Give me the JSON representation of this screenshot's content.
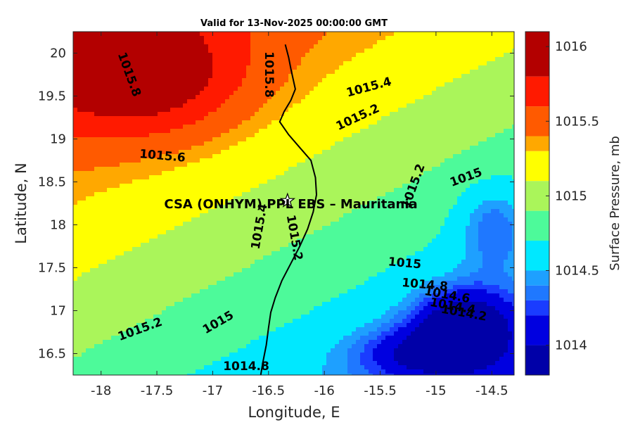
{
  "chart_data": {
    "type": "heatmap",
    "title": "Valid for 13-Nov-2025 00:00:00 GMT",
    "xlabel": "Longitude, E",
    "ylabel": "Latitude, N",
    "xlim": [
      -18.25,
      -14.3
    ],
    "ylim": [
      16.25,
      20.25
    ],
    "xticks": [
      -18,
      -17.5,
      -17,
      -16.5,
      -16,
      -15.5,
      -15,
      -14.5
    ],
    "xtick_labels": [
      "-18",
      "-17.5",
      "-17",
      "-16.5",
      "-16",
      "-15.5",
      "-15",
      "-14.5"
    ],
    "yticks": [
      16.5,
      17,
      17.5,
      18,
      18.5,
      19,
      19.5,
      20
    ],
    "ytick_labels": [
      "16.5",
      "17",
      "17.5",
      "18",
      "18.5",
      "19",
      "19.5",
      "20"
    ],
    "colorbar": {
      "label": "Surface Pressure, mb",
      "levels": [
        1013.8,
        1013.9,
        1014.0,
        1014.1,
        1014.2,
        1014.3,
        1014.4,
        1014.5,
        1014.6,
        1014.7,
        1014.8,
        1014.9,
        1015.0,
        1015.1,
        1015.2,
        1015.3,
        1015.4,
        1015.5,
        1015.6,
        1015.7,
        1015.8,
        1015.9,
        1016.0,
        1016.1
      ],
      "ticks": [
        1014,
        1014.5,
        1015,
        1015.5,
        1016
      ],
      "tick_labels": [
        "1014",
        "1014.5",
        "1015",
        "1015.5",
        "1016"
      ],
      "colors": [
        "#0000a8",
        "#0000e0",
        "#1a3cff",
        "#1f78ff",
        "#1ea0ff",
        "#00e8ff",
        "#4dfa9a",
        "#aaf55a",
        "#ffff00",
        "#ffa800",
        "#ff5a00",
        "#ff1a00",
        "#b30000"
      ],
      "color_bounds": [
        1013.8,
        1014.0,
        1014.2,
        1014.3,
        1014.4,
        1014.5,
        1014.7,
        1014.9,
        1015.1,
        1015.3,
        1015.4,
        1015.6,
        1015.8,
        1016.1
      ]
    },
    "pressure_field": {
      "base": 1015.0,
      "gradient_lon": 0.15,
      "gradient_lat": 0.22,
      "features": [
        {
          "lon": -17.6,
          "lat": 19.7,
          "amp": 0.55,
          "sx": 0.9,
          "sy": 0.7
        },
        {
          "lon": -14.75,
          "lat": 16.8,
          "amp": -0.85,
          "sx": 0.45,
          "sy": 0.45
        },
        {
          "lon": -14.5,
          "lat": 18.0,
          "amp": -0.35,
          "sx": 0.3,
          "sy": 0.5
        },
        {
          "lon": -15.2,
          "lat": 16.5,
          "amp": -0.45,
          "sx": 0.55,
          "sy": 0.3
        }
      ]
    },
    "contour_labels": [
      {
        "text": "1015.8",
        "lon": -17.75,
        "lat": 19.75,
        "rot": 70
      },
      {
        "text": "1015.8",
        "lon": -16.5,
        "lat": 19.75,
        "rot": 90
      },
      {
        "text": "1015.6",
        "lon": -17.45,
        "lat": 18.8,
        "rot": 5
      },
      {
        "text": "1015.4",
        "lon": -15.6,
        "lat": 19.6,
        "rot": -15
      },
      {
        "text": "1015.2",
        "lon": -15.7,
        "lat": 19.25,
        "rot": -25
      },
      {
        "text": "1015.4",
        "lon": -16.58,
        "lat": 17.98,
        "rot": -80
      },
      {
        "text": "1015.2",
        "lon": -16.27,
        "lat": 17.85,
        "rot": 80
      },
      {
        "text": "1015.2",
        "lon": -15.2,
        "lat": 18.45,
        "rot": -70
      },
      {
        "text": "1015",
        "lon": -14.73,
        "lat": 18.55,
        "rot": -20
      },
      {
        "text": "1015",
        "lon": -15.28,
        "lat": 17.55,
        "rot": 5
      },
      {
        "text": "1014.8",
        "lon": -15.1,
        "lat": 17.3,
        "rot": 5
      },
      {
        "text": "1014.6",
        "lon": -14.9,
        "lat": 17.18,
        "rot": 10
      },
      {
        "text": "1014.4",
        "lon": -14.85,
        "lat": 17.05,
        "rot": 10
      },
      {
        "text": "1014.2",
        "lon": -14.75,
        "lat": 16.97,
        "rot": 10
      },
      {
        "text": "1015.2",
        "lon": -17.65,
        "lat": 16.78,
        "rot": -20
      },
      {
        "text": "1015",
        "lon": -16.95,
        "lat": 16.86,
        "rot": -30
      },
      {
        "text": "1014.8",
        "lon": -16.7,
        "lat": 16.35,
        "rot": 0
      }
    ],
    "coastline": [
      [
        -16.35,
        20.1
      ],
      [
        -16.32,
        19.95
      ],
      [
        -16.3,
        19.82
      ],
      [
        -16.28,
        19.7
      ],
      [
        -16.26,
        19.58
      ],
      [
        -16.3,
        19.45
      ],
      [
        -16.36,
        19.32
      ],
      [
        -16.4,
        19.2
      ],
      [
        -16.32,
        19.05
      ],
      [
        -16.22,
        18.9
      ],
      [
        -16.12,
        18.75
      ],
      [
        -16.08,
        18.55
      ],
      [
        -16.07,
        18.35
      ],
      [
        -16.1,
        18.15
      ],
      [
        -16.15,
        17.95
      ],
      [
        -16.22,
        17.75
      ],
      [
        -16.3,
        17.55
      ],
      [
        -16.38,
        17.35
      ],
      [
        -16.44,
        17.15
      ],
      [
        -16.48,
        16.98
      ],
      [
        -16.5,
        16.8
      ],
      [
        -16.52,
        16.6
      ],
      [
        -16.55,
        16.4
      ],
      [
        -16.57,
        16.25
      ]
    ],
    "annotation": {
      "text": "CSA (ONHYM) PPL EBS  – Mauritania",
      "lon": -16.3,
      "lat": 18.25,
      "star_lon": -16.33,
      "star_lat": 18.28
    }
  }
}
